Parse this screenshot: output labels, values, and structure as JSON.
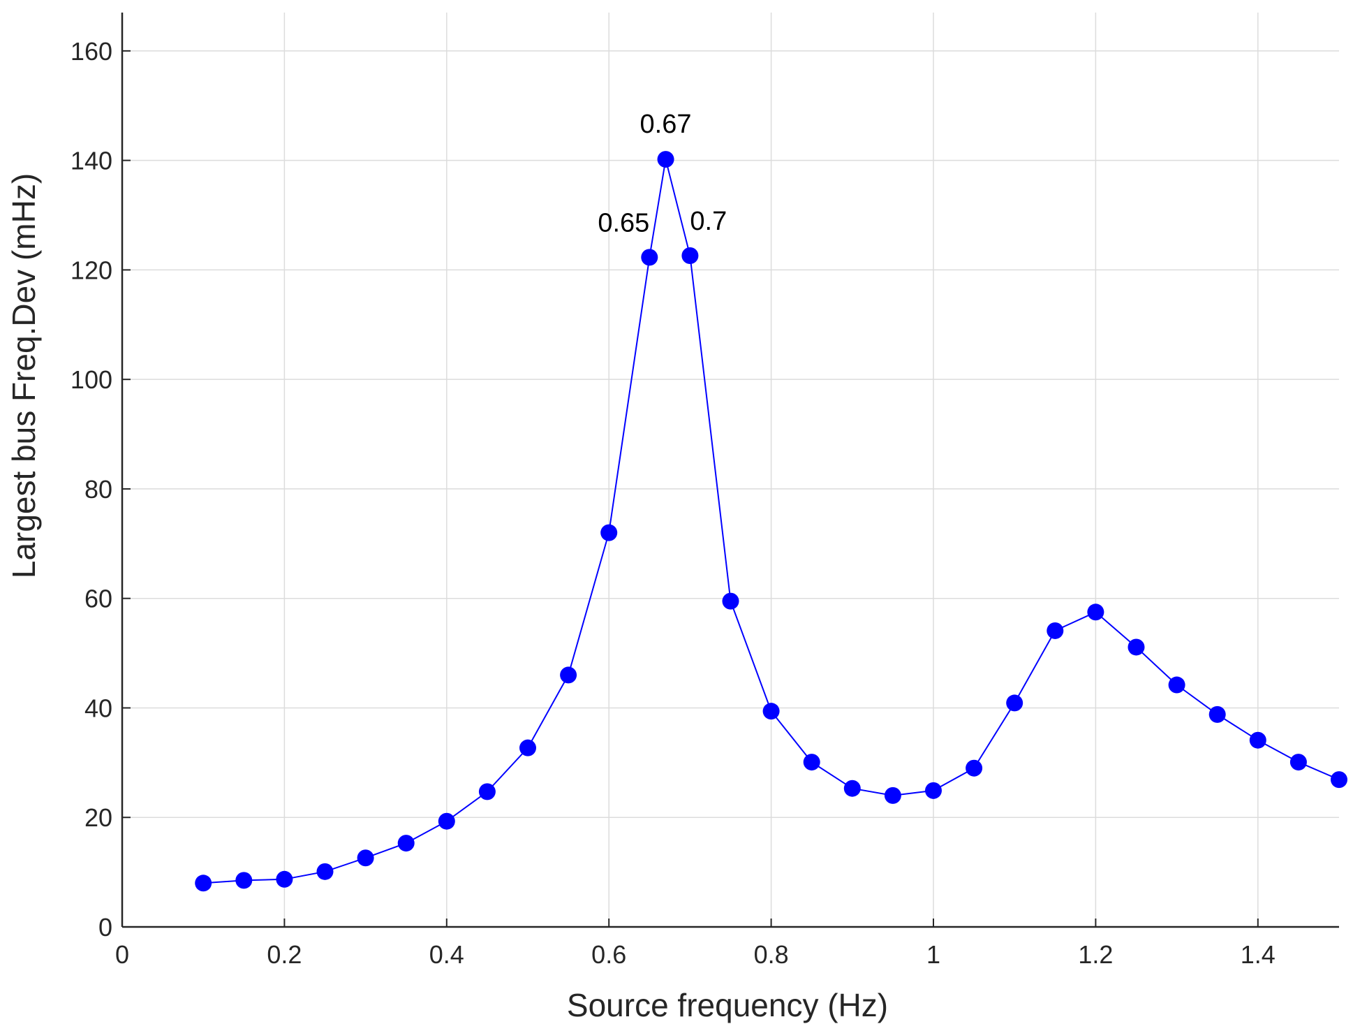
{
  "chart_data": {
    "type": "line",
    "title": "",
    "xlabel": "Source frequency (Hz)",
    "ylabel": "Largest bus Freq.Dev (mHz)",
    "xlim": [
      0,
      1.5
    ],
    "ylim": [
      0,
      167
    ],
    "xticks": [
      0,
      0.2,
      0.4,
      0.6,
      0.8,
      1,
      1.2,
      1.4
    ],
    "xtick_labels": [
      "0",
      "0.2",
      "0.4",
      "0.6",
      "0.8",
      "1",
      "1.2",
      "1.4"
    ],
    "yticks": [
      0,
      20,
      40,
      60,
      80,
      100,
      120,
      140,
      160
    ],
    "ytick_labels": [
      "0",
      "20",
      "40",
      "60",
      "80",
      "100",
      "120",
      "140",
      "160"
    ],
    "grid": true,
    "series": [
      {
        "name": "Largest bus Freq.Dev",
        "color": "#0000ff",
        "marker": "circle",
        "x": [
          0.1,
          0.15,
          0.2,
          0.25,
          0.3,
          0.35,
          0.4,
          0.45,
          0.5,
          0.55,
          0.6,
          0.65,
          0.67,
          0.7,
          0.75,
          0.8,
          0.85,
          0.9,
          0.95,
          1.0,
          1.05,
          1.1,
          1.15,
          1.2,
          1.25,
          1.3,
          1.35,
          1.4,
          1.45,
          1.5
        ],
        "y": [
          8,
          8.5,
          8.7,
          10.1,
          12.6,
          15.3,
          19.3,
          24.7,
          32.7,
          46.0,
          72.0,
          122.3,
          140.2,
          122.6,
          59.5,
          39.4,
          30.1,
          25.3,
          24.0,
          24.9,
          29.0,
          40.9,
          54.1,
          57.5,
          51.1,
          44.2,
          38.8,
          34.1,
          30.1,
          26.9
        ]
      }
    ],
    "annotations": [
      {
        "text": "0.67",
        "x": 0.67,
        "y": 140.2,
        "position": "above"
      },
      {
        "text": "0.65",
        "x": 0.65,
        "y": 122.3,
        "position": "upper-left"
      },
      {
        "text": "0.7",
        "x": 0.7,
        "y": 122.6,
        "position": "upper-right"
      }
    ],
    "colors": {
      "line": "#0000ff",
      "marker": "#0000ff",
      "grid": "#dcdcdc",
      "axis": "#262626"
    }
  }
}
